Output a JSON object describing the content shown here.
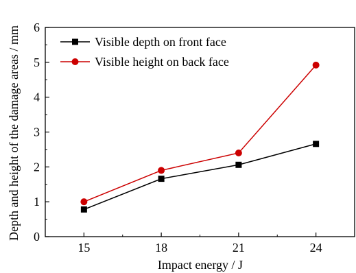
{
  "chart_data": {
    "type": "line",
    "title": "",
    "xlabel": "Impact energy / J",
    "ylabel": "Depth and height of the damage areas / mm",
    "x": [
      15,
      18,
      21,
      24
    ],
    "xlim": [
      13.5,
      25.5
    ],
    "ylim": [
      0,
      6
    ],
    "xticks": [
      15,
      18,
      21,
      24
    ],
    "yticks": [
      0,
      1,
      2,
      3,
      4,
      5,
      6
    ],
    "grid": false,
    "legend_position": "top-left",
    "series": [
      {
        "name": "Visible depth on front face",
        "values": [
          0.78,
          1.66,
          2.06,
          2.66
        ],
        "color": "#000000",
        "marker": "square"
      },
      {
        "name": "Visible height on back face",
        "values": [
          1.0,
          1.9,
          2.4,
          4.92
        ],
        "color": "#cc0000",
        "marker": "circle"
      }
    ]
  }
}
